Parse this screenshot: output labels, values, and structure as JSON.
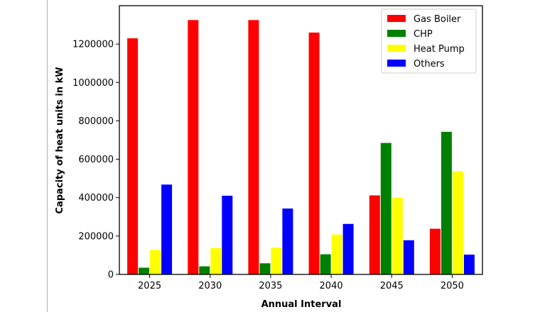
{
  "chart_data": {
    "type": "bar",
    "title": "",
    "xlabel": "Annual Interval",
    "ylabel": "Capacity of heat units in kW",
    "categories": [
      "2025",
      "2030",
      "2035",
      "2040",
      "2045",
      "2050"
    ],
    "ylim": [
      0,
      1400000
    ],
    "yticks": [
      0,
      200000,
      400000,
      600000,
      800000,
      1000000,
      1200000
    ],
    "ytick_labels": [
      "0",
      "200000",
      "400000",
      "600000",
      "800000",
      "1000000",
      "1200000"
    ],
    "grid": false,
    "legend_position": "top-right",
    "series": [
      {
        "name": "Gas Boiler",
        "color": "#ff0000",
        "values": [
          1230000,
          1325000,
          1325000,
          1260000,
          412000,
          238000
        ]
      },
      {
        "name": "CHP",
        "color": "#008000",
        "values": [
          35000,
          42000,
          58000,
          105000,
          685000,
          743000
        ]
      },
      {
        "name": "Heat Pump",
        "color": "#ffff00",
        "values": [
          128000,
          137000,
          140000,
          208000,
          400000,
          537000
        ]
      },
      {
        "name": "Others",
        "color": "#0000ff",
        "values": [
          468000,
          410000,
          343000,
          263000,
          178000,
          103000
        ]
      }
    ]
  }
}
